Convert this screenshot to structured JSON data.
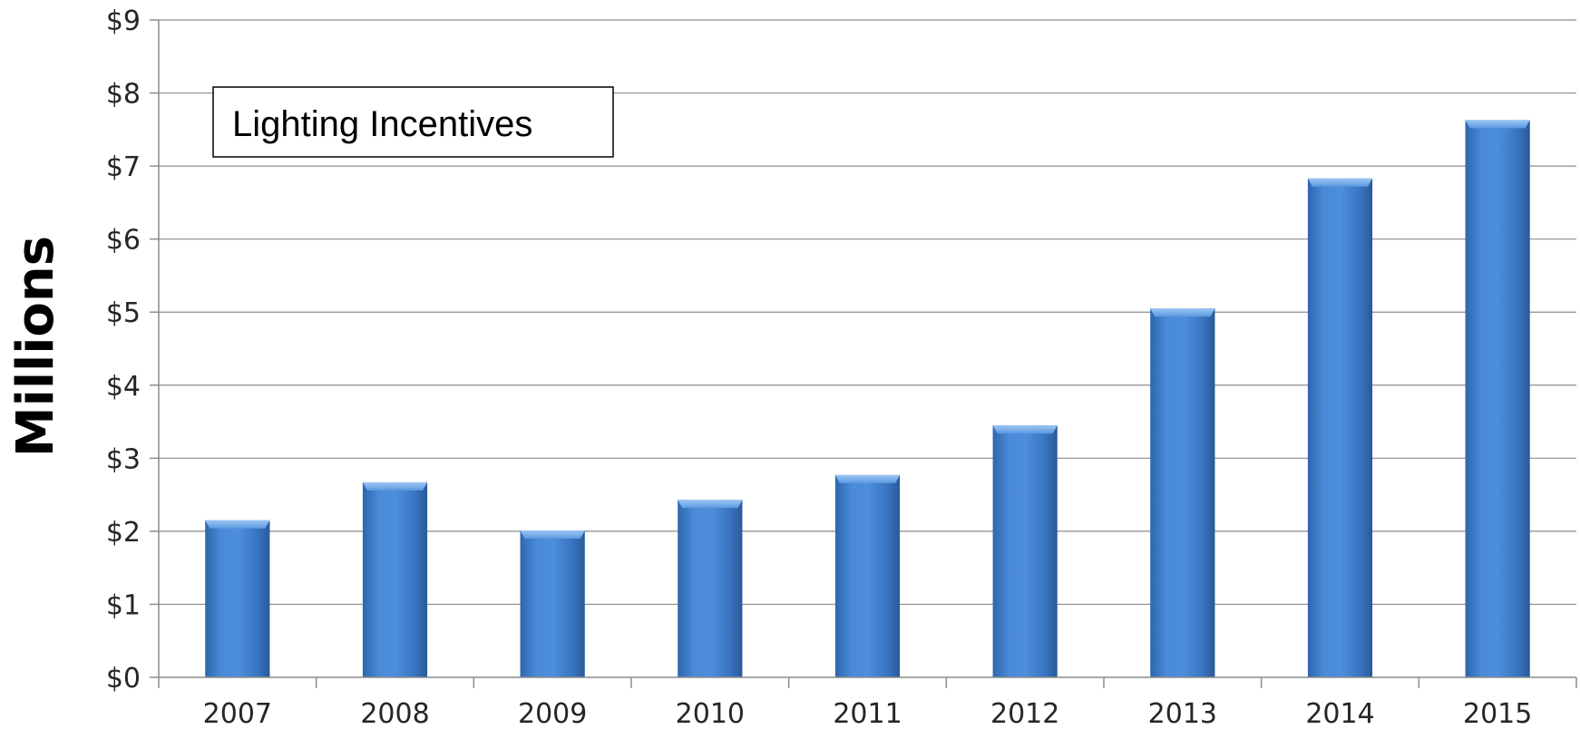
{
  "chart_data": {
    "type": "bar",
    "legend": "Lighting Incentives",
    "ylabel": "Millions",
    "xlabel": "",
    "categories": [
      "2007",
      "2008",
      "2009",
      "2010",
      "2011",
      "2012",
      "2013",
      "2014",
      "2015"
    ],
    "series": [
      {
        "name": "Lighting Incentives",
        "values": [
          2.15,
          2.67,
          2.01,
          2.43,
          2.77,
          3.45,
          5.05,
          6.83,
          7.63
        ]
      }
    ],
    "ylim": [
      0,
      9
    ],
    "yticks": [
      "$0",
      "$1",
      "$2",
      "$3",
      "$4",
      "$5",
      "$6",
      "$7",
      "$8",
      "$9"
    ],
    "grid": true,
    "legend_position": "top-left",
    "colors": {
      "bar": "#3f7ed1",
      "bar_light": "#6aa6ea",
      "bar_dark": "#2a5f9f",
      "grid": "#8c8c8c"
    }
  }
}
